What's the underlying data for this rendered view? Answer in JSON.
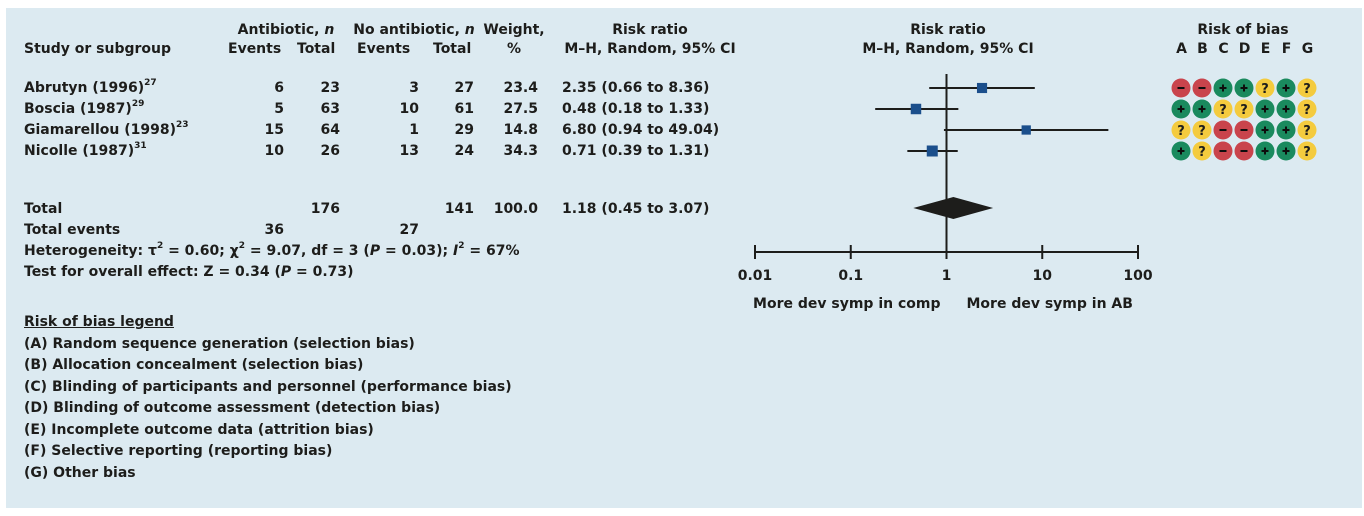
{
  "headers": {
    "study": "Study or subgroup",
    "antibiotic": "Antibiotic, ",
    "antibiotic_n": "n",
    "no_antibiotic": "No antibiotic, ",
    "no_antibiotic_n": "n",
    "events": "Events",
    "total": "Total",
    "weight_top": "Weight,",
    "weight_bottom": "%",
    "rr_top": "Risk ratio",
    "rr_bottom": "M–H, Random, 95% CI",
    "plot_top": "Risk ratio",
    "plot_bottom": "M–H, Random, 95% CI",
    "bias_top": "Risk of bias",
    "bias_letters": [
      "A",
      "B",
      "C",
      "D",
      "E",
      "F",
      "G"
    ]
  },
  "studies": [
    {
      "name": "Abrutyn (1996)",
      "ref": "27",
      "ab_events": "6",
      "ab_total": "23",
      "no_events": "3",
      "no_total": "27",
      "weight": "23.4",
      "rr_text": "2.35 (0.66 to 8.36)",
      "bias": [
        "-",
        "-",
        "+",
        "+",
        "?",
        "+",
        "?"
      ]
    },
    {
      "name": "Boscia (1987)",
      "ref": "29",
      "ab_events": "5",
      "ab_total": "63",
      "no_events": "10",
      "no_total": "61",
      "weight": "27.5",
      "rr_text": "0.48 (0.18 to 1.33)",
      "bias": [
        "+",
        "+",
        "?",
        "?",
        "+",
        "+",
        "?"
      ]
    },
    {
      "name": "Giamarellou (1998)",
      "ref": "23",
      "ab_events": "15",
      "ab_total": "64",
      "no_events": "1",
      "no_total": "29",
      "weight": "14.8",
      "rr_text": "6.80 (0.94 to 49.04)",
      "bias": [
        "?",
        "?",
        "-",
        "-",
        "+",
        "+",
        "?"
      ]
    },
    {
      "name": "Nicolle (1987)",
      "ref": "31",
      "ab_events": "10",
      "ab_total": "26",
      "no_events": "13",
      "no_total": "24",
      "weight": "34.3",
      "rr_text": "0.71 (0.39 to 1.31)",
      "bias": [
        "+",
        "?",
        "-",
        "-",
        "+",
        "+",
        "?"
      ]
    }
  ],
  "total": {
    "label": "Total",
    "ab_total": "176",
    "no_total": "141",
    "weight": "100.0",
    "rr_text": "1.18 (0.45 to 3.07)"
  },
  "total_events": {
    "label": "Total events",
    "ab": "36",
    "no": "27"
  },
  "heterogeneity": {
    "prefix": "Heterogeneity: ",
    "tau": "τ",
    "tau_val": " = 0.60;  ",
    "chi": "χ",
    "chi_val": " = 9.07, df = 3 (",
    "p": "P",
    "p_val": " = 0.03);  ",
    "i": "I",
    "i_val": " = 67%"
  },
  "overall": {
    "prefix": "Test for overall effect: Z = 0.34 (",
    "p": "P",
    "suffix": " = 0.73)"
  },
  "legend": {
    "title": "Risk of bias legend",
    "items": [
      "(A) Random sequence generation (selection bias)",
      "(B) Allocation concealment (selection bias)",
      "(C) Blinding of participants and personnel (performance bias)",
      "(D) Blinding of outcome assessment (detection bias)",
      "(E) Incomplete outcome data (attrition bias)",
      "(F) Selective reporting (reporting bias)",
      "(G) Other bias"
    ]
  },
  "colors": {
    "background": "#dceaf1",
    "text": "#1d1d1b",
    "square": "#1b4f8c",
    "diamond": "#1d1d1b",
    "bias_low": "#1a8a5e",
    "bias_high": "#c9444c",
    "bias_unclear": "#f4cb3e"
  },
  "chart_data": {
    "type": "forest",
    "scale": "log",
    "xlim": [
      0.01,
      100
    ],
    "ticks": [
      0.01,
      0.1,
      1,
      10,
      100
    ],
    "tick_labels": [
      "0.01",
      "0.1",
      "1",
      "10",
      "100"
    ],
    "left_label": "More dev symp in comp",
    "right_label": "More dev symp in AB",
    "null_value": 1,
    "studies": [
      {
        "rr": 2.35,
        "lo": 0.66,
        "hi": 8.36,
        "weight": 23.4
      },
      {
        "rr": 0.48,
        "lo": 0.18,
        "hi": 1.33,
        "weight": 27.5
      },
      {
        "rr": 6.8,
        "lo": 0.94,
        "hi": 49.04,
        "weight": 14.8
      },
      {
        "rr": 0.71,
        "lo": 0.39,
        "hi": 1.31,
        "weight": 34.3
      }
    ],
    "pooled": {
      "rr": 1.18,
      "lo": 0.45,
      "hi": 3.07
    }
  }
}
